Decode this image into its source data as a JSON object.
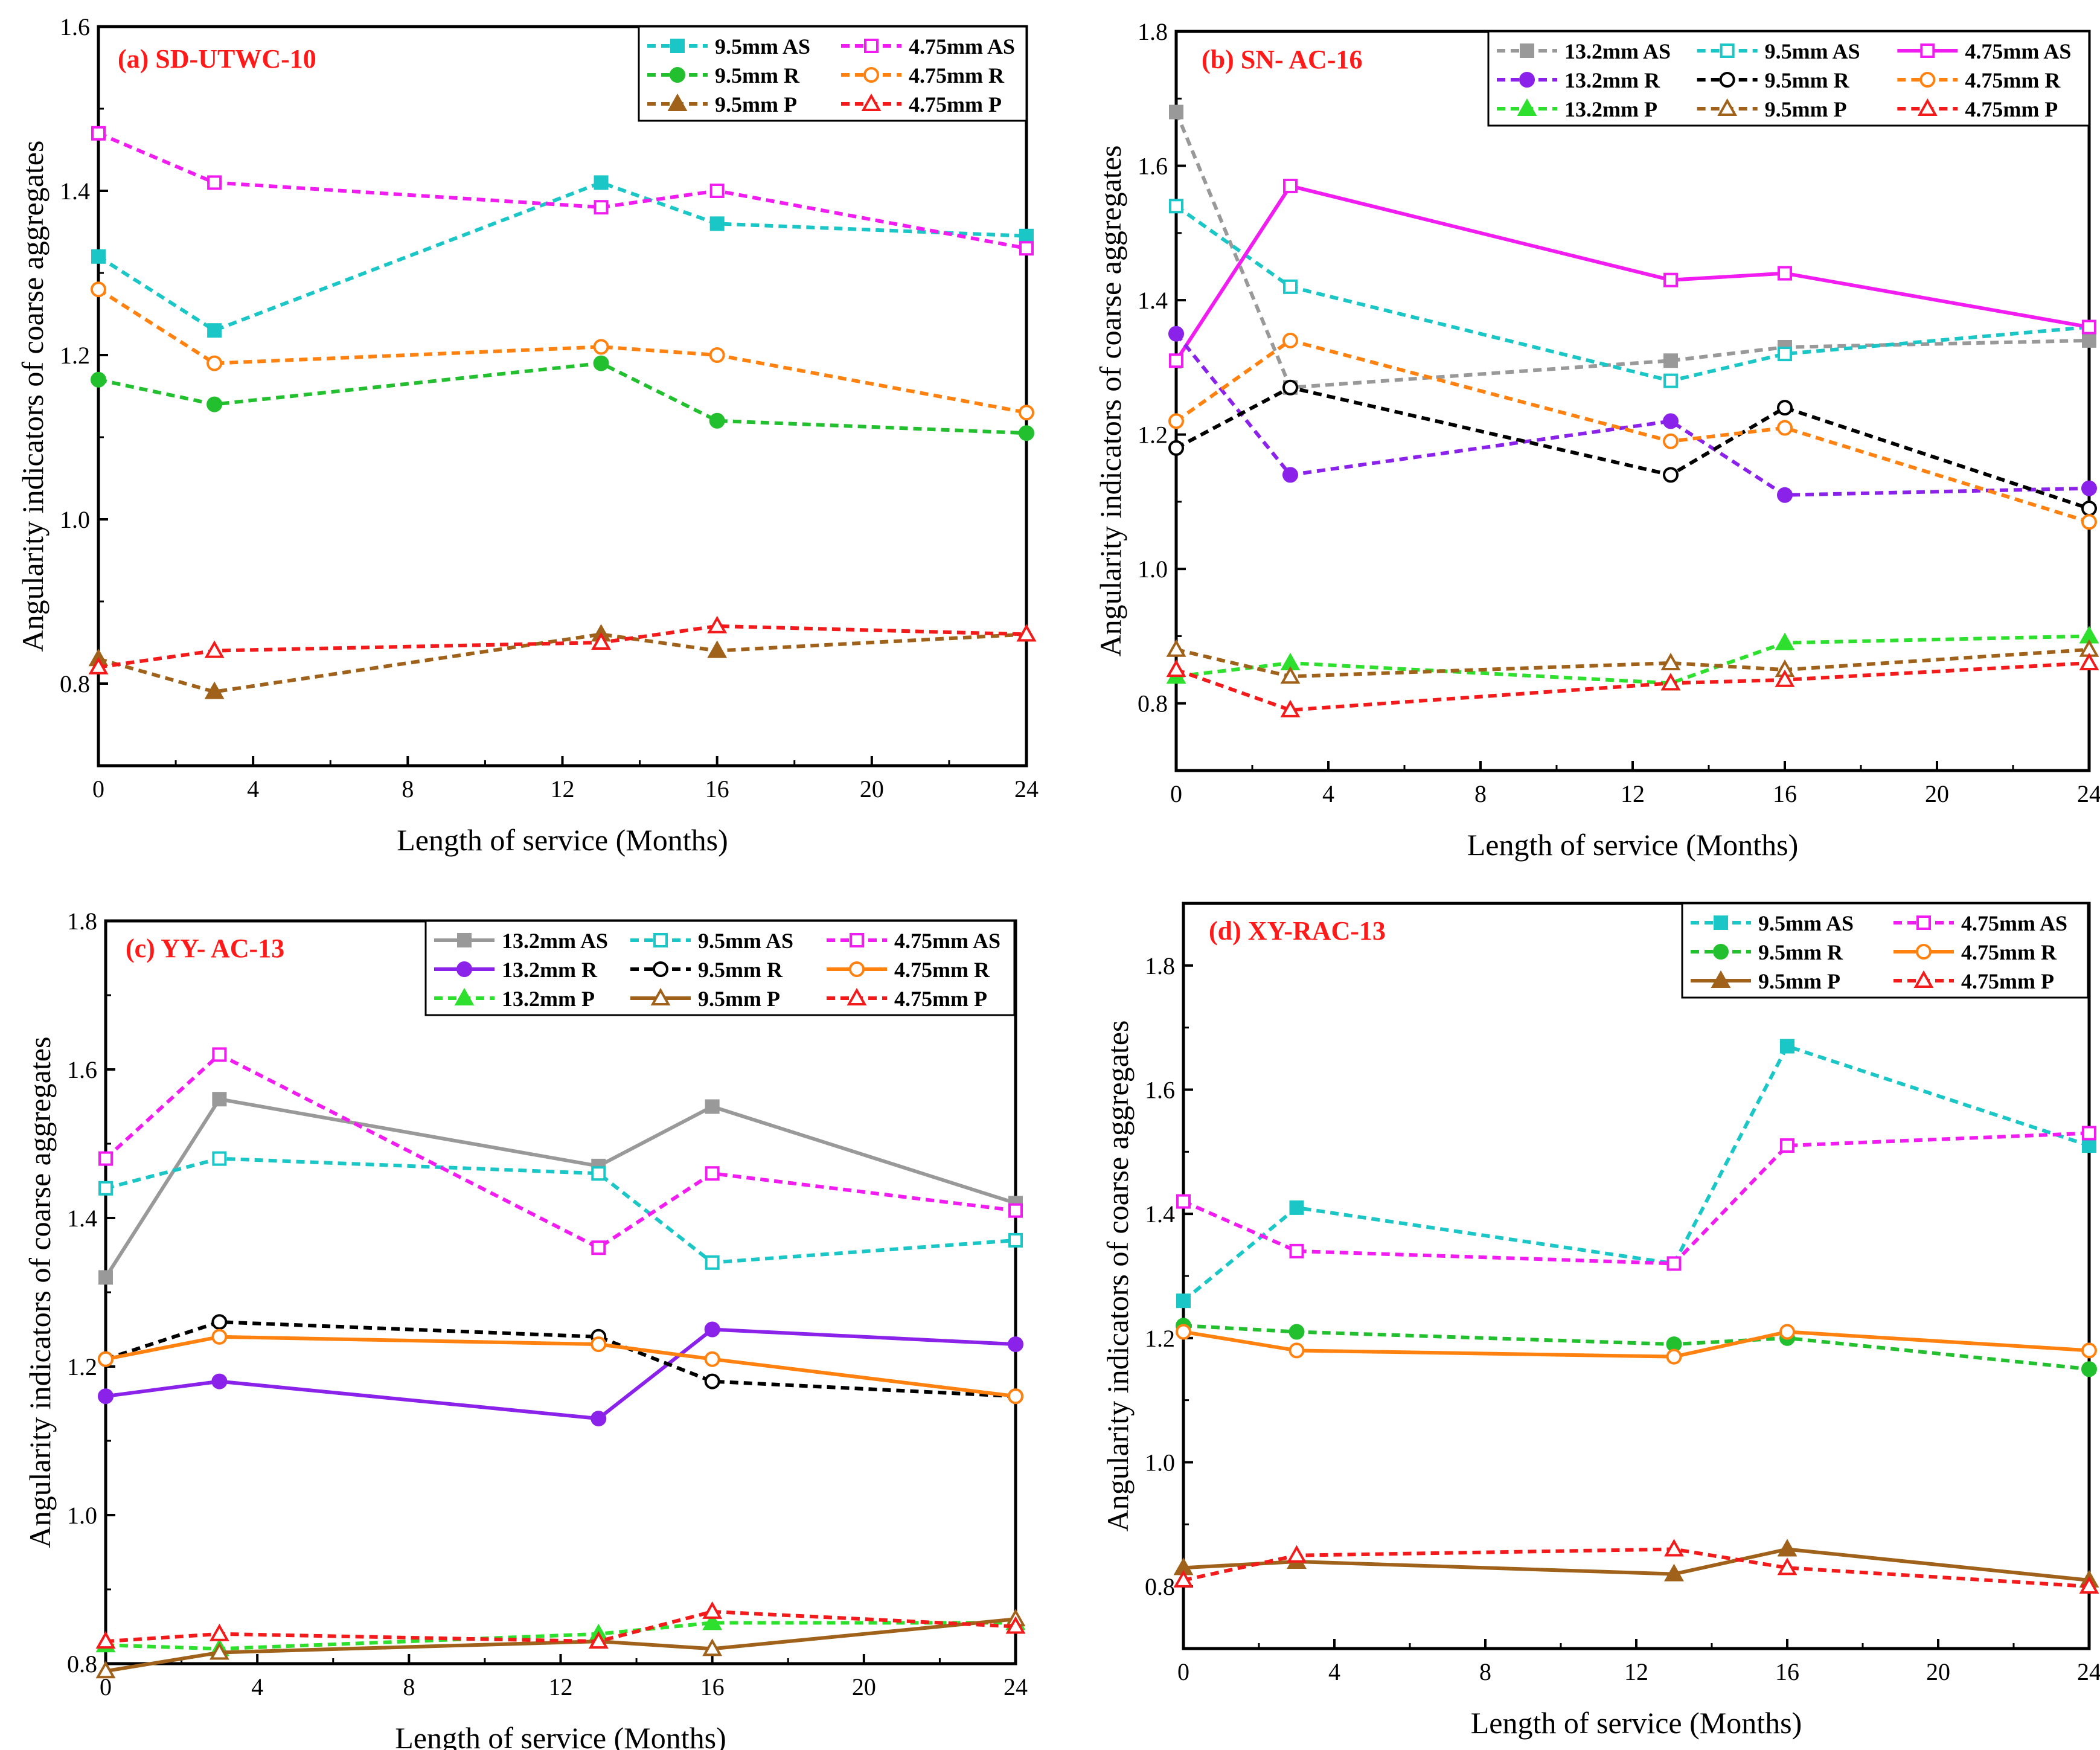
{
  "figure": {
    "type": "multi-panel line chart"
  },
  "styles": {
    "AS13": {
      "color": "#999999",
      "marker": "square",
      "filled": true
    },
    "AS95": {
      "color": "#1BC6C6",
      "marker": "square",
      "filled": true
    },
    "AS95o": {
      "color": "#1BC6C6",
      "marker": "square",
      "filled": false
    },
    "AS475": {
      "color": "#F01CF0",
      "marker": "square",
      "filled": false
    },
    "R13": {
      "color": "#8B22EA",
      "marker": "circle",
      "filled": true
    },
    "R95": {
      "color": "#22C02F",
      "marker": "circle",
      "filled": true
    },
    "R95b": {
      "color": "#000000",
      "marker": "circle",
      "filled": false
    },
    "R475": {
      "color": "#FF8210",
      "marker": "circle",
      "filled": false
    },
    "P13": {
      "color": "#2EE02E",
      "marker": "triangle",
      "filled": true
    },
    "P95": {
      "color": "#A0621A",
      "marker": "triangle",
      "filled": true
    },
    "P95o": {
      "color": "#A0621A",
      "marker": "triangle",
      "filled": false
    },
    "P475": {
      "color": "#F21A1A",
      "marker": "triangle",
      "filled": false
    }
  },
  "chart_data": [
    {
      "type": "line",
      "panel_label": "(a) SD-UTWC-10",
      "xlabel": "Length of service (Months)",
      "ylabel": "Angularity indicators of coarse aggregates",
      "xlim": [
        0,
        24
      ],
      "ylim": [
        0.7,
        1.6
      ],
      "xticks": [
        0,
        4,
        8,
        12,
        16,
        20,
        24
      ],
      "yticks": [
        0.8,
        1.0,
        1.2,
        1.4,
        1.6
      ],
      "legend_position": "top-right",
      "x": [
        0,
        3,
        13,
        16,
        24
      ],
      "series": [
        {
          "name": "9.5mm AS",
          "style": "AS95",
          "dash": "dashed",
          "values": [
            1.32,
            1.23,
            1.41,
            1.36,
            1.345
          ]
        },
        {
          "name": "4.75mm AS",
          "style": "AS475",
          "dash": "dashed",
          "values": [
            1.47,
            1.41,
            1.38,
            1.4,
            1.33
          ]
        },
        {
          "name": "9.5mm R",
          "style": "R95",
          "dash": "dashed",
          "values": [
            1.17,
            1.14,
            1.19,
            1.12,
            1.105
          ]
        },
        {
          "name": "4.75mm R",
          "style": "R475",
          "dash": "dashed",
          "values": [
            1.28,
            1.19,
            1.21,
            1.2,
            1.13
          ]
        },
        {
          "name": "9.5mm P",
          "style": "P95",
          "dash": "dashed",
          "values": [
            0.83,
            0.79,
            0.86,
            0.84,
            0.86
          ]
        },
        {
          "name": "4.75mm  P",
          "style": "P475",
          "dash": "dashed",
          "values": [
            0.82,
            0.84,
            0.85,
            0.87,
            0.86
          ]
        }
      ]
    },
    {
      "type": "line",
      "panel_label": "(b) SN- AC-16",
      "xlabel": "Length of service (Months)",
      "ylabel": "Angularity indicators of coarse aggregates",
      "xlim": [
        0,
        24
      ],
      "ylim": [
        0.7,
        1.8
      ],
      "xticks": [
        0,
        4,
        8,
        12,
        16,
        20,
        24
      ],
      "yticks": [
        0.8,
        1.0,
        1.2,
        1.4,
        1.6,
        1.8
      ],
      "legend_position": "top-right",
      "x": [
        0,
        3,
        13,
        16,
        24
      ],
      "series": [
        {
          "name": "13.2mm AS",
          "style": "AS13",
          "dash": "dashed",
          "values": [
            1.68,
            1.27,
            1.31,
            1.33,
            1.34
          ]
        },
        {
          "name": "9.5mm AS",
          "style": "AS95o",
          "dash": "dashed",
          "values": [
            1.54,
            1.42,
            1.28,
            1.32,
            1.36
          ]
        },
        {
          "name": "4.75mm AS",
          "style": "AS475",
          "dash": "solid",
          "values": [
            1.31,
            1.57,
            1.43,
            1.44,
            1.36
          ]
        },
        {
          "name": "13.2mm R",
          "style": "R13",
          "dash": "dashed",
          "values": [
            1.35,
            1.14,
            1.22,
            1.11,
            1.12
          ]
        },
        {
          "name": "9.5mm R",
          "style": "R95b",
          "dash": "dashed",
          "values": [
            1.18,
            1.27,
            1.14,
            1.24,
            1.09
          ]
        },
        {
          "name": "4.75mm R",
          "style": "R475",
          "dash": "dashed",
          "values": [
            1.22,
            1.34,
            1.19,
            1.21,
            1.07
          ]
        },
        {
          "name": "13.2mm P",
          "style": "P13",
          "dash": "dashed",
          "values": [
            0.84,
            0.86,
            0.83,
            0.89,
            0.9
          ]
        },
        {
          "name": "9.5mm  P",
          "style": "P95o",
          "dash": "dashed",
          "values": [
            0.88,
            0.84,
            0.86,
            0.85,
            0.88
          ]
        },
        {
          "name": "4.75mm P",
          "style": "P475",
          "dash": "dashed",
          "values": [
            0.85,
            0.79,
            0.83,
            0.835,
            0.86
          ]
        }
      ]
    },
    {
      "type": "line",
      "panel_label": "(c) YY- AC-13",
      "xlabel": "Length of service (Months)",
      "ylabel": "Angularity indicators of coarse aggregates",
      "xlim": [
        0,
        24
      ],
      "ylim": [
        0.8,
        1.8
      ],
      "xticks": [
        0,
        4,
        8,
        12,
        16,
        20,
        24
      ],
      "yticks": [
        0.8,
        1.0,
        1.2,
        1.4,
        1.6,
        1.8
      ],
      "legend_position": "top-right",
      "x": [
        0,
        3,
        13,
        16,
        24
      ],
      "series": [
        {
          "name": "13.2mm AS",
          "style": "AS13",
          "dash": "solid",
          "values": [
            1.32,
            1.56,
            1.47,
            1.55,
            1.42
          ]
        },
        {
          "name": "9.5mm AS",
          "style": "AS95o",
          "dash": "dashed",
          "values": [
            1.44,
            1.48,
            1.46,
            1.34,
            1.37
          ]
        },
        {
          "name": "4.75mm AS",
          "style": "AS475",
          "dash": "dashed",
          "values": [
            1.48,
            1.62,
            1.36,
            1.46,
            1.41
          ]
        },
        {
          "name": "13.2mm R",
          "style": "R13",
          "dash": "solid",
          "values": [
            1.16,
            1.18,
            1.13,
            1.25,
            1.23
          ]
        },
        {
          "name": "9.5mm R",
          "style": "R95b",
          "dash": "dashed",
          "values": [
            1.21,
            1.26,
            1.24,
            1.18,
            1.16
          ]
        },
        {
          "name": "4.75mm R",
          "style": "R475",
          "dash": "solid",
          "values": [
            1.21,
            1.24,
            1.23,
            1.21,
            1.16
          ]
        },
        {
          "name": "13.2mm  P",
          "style": "P13",
          "dash": "dashed",
          "values": [
            0.825,
            0.82,
            0.84,
            0.855,
            0.855
          ]
        },
        {
          "name": "9.5mm P",
          "style": "P95o",
          "dash": "solid",
          "values": [
            0.79,
            0.815,
            0.83,
            0.82,
            0.86
          ]
        },
        {
          "name": "4.75mm P",
          "style": "P475",
          "dash": "dashed",
          "values": [
            0.83,
            0.84,
            0.83,
            0.87,
            0.85
          ]
        }
      ]
    },
    {
      "type": "line",
      "panel_label": "(d) XY-RAC-13",
      "xlabel": "Length of service (Months)",
      "ylabel": "Angularity indicators of coarse aggregates",
      "xlim": [
        0,
        24
      ],
      "ylim": [
        0.7,
        1.9
      ],
      "xticks": [
        0,
        4,
        8,
        12,
        16,
        20,
        24
      ],
      "yticks": [
        0.8,
        1.0,
        1.2,
        1.4,
        1.6,
        1.8
      ],
      "legend_position": "top-right",
      "x": [
        0,
        3,
        13,
        16,
        24
      ],
      "series": [
        {
          "name": "9.5mm AS",
          "style": "AS95",
          "dash": "dashed",
          "values": [
            1.26,
            1.41,
            1.32,
            1.67,
            1.51
          ]
        },
        {
          "name": "4.75mm AS",
          "style": "AS475",
          "dash": "dashed",
          "values": [
            1.42,
            1.34,
            1.32,
            1.51,
            1.53
          ]
        },
        {
          "name": "9.5mm R",
          "style": "R95",
          "dash": "dashed",
          "values": [
            1.22,
            1.21,
            1.19,
            1.2,
            1.15
          ]
        },
        {
          "name": "4.75mm R",
          "style": "R475",
          "dash": "solid",
          "values": [
            1.21,
            1.18,
            1.17,
            1.21,
            1.18
          ]
        },
        {
          "name": "9.5mm P",
          "style": "P95",
          "dash": "solid",
          "values": [
            0.83,
            0.84,
            0.82,
            0.86,
            0.81
          ]
        },
        {
          "name": "4.75mm  P",
          "style": "P475",
          "dash": "dashed",
          "values": [
            0.81,
            0.85,
            0.86,
            0.83,
            0.8
          ]
        }
      ]
    }
  ]
}
